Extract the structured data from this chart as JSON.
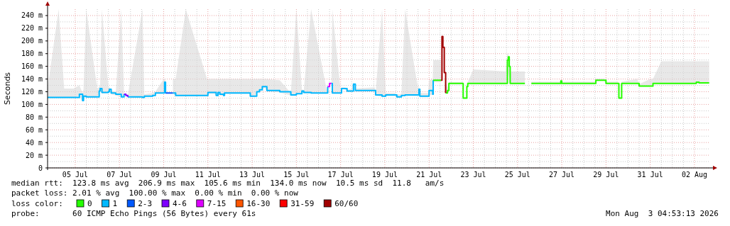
{
  "chart_data": {
    "type": "line",
    "ylabel": "Seconds",
    "xlim": [
      "2026-07-04T06:00",
      "2026-08-03T05:00"
    ],
    "ylim": [
      0,
      250
    ],
    "yticks": [
      {
        "value": 0,
        "label": "0"
      },
      {
        "value": 20,
        "label": "20 m"
      },
      {
        "value": 40,
        "label": "40 m"
      },
      {
        "value": 60,
        "label": "60 m"
      },
      {
        "value": 80,
        "label": "80 m"
      },
      {
        "value": 100,
        "label": "100 m"
      },
      {
        "value": 120,
        "label": "120 m"
      },
      {
        "value": 140,
        "label": "140 m"
      },
      {
        "value": 160,
        "label": "160 m"
      },
      {
        "value": 180,
        "label": "180 m"
      },
      {
        "value": 200,
        "label": "200 m"
      },
      {
        "value": 220,
        "label": "220 m"
      },
      {
        "value": 240,
        "label": "240 m"
      }
    ],
    "xticks": [
      {
        "value": "2026-07-05T12:00",
        "label": "05 Jul"
      },
      {
        "value": "2026-07-07T12:00",
        "label": "07 Jul"
      },
      {
        "value": "2026-07-09T12:00",
        "label": "09 Jul"
      },
      {
        "value": "2026-07-11T12:00",
        "label": "11 Jul"
      },
      {
        "value": "2026-07-13T12:00",
        "label": "13 Jul"
      },
      {
        "value": "2026-07-15T12:00",
        "label": "15 Jul"
      },
      {
        "value": "2026-07-17T12:00",
        "label": "17 Jul"
      },
      {
        "value": "2026-07-19T12:00",
        "label": "19 Jul"
      },
      {
        "value": "2026-07-21T12:00",
        "label": "21 Jul"
      },
      {
        "value": "2026-07-23T12:00",
        "label": "23 Jul"
      },
      {
        "value": "2026-07-25T12:00",
        "label": "25 Jul"
      },
      {
        "value": "2026-07-27T12:00",
        "label": "27 Jul"
      },
      {
        "value": "2026-07-29T12:00",
        "label": "29 Jul"
      },
      {
        "value": "2026-07-31T12:00",
        "label": "31 Jul"
      },
      {
        "value": "2026-08-02T12:00",
        "label": "02 Aug"
      }
    ],
    "grid": true,
    "legend": "bottom",
    "legend_title": "loss color:",
    "line_style": "solid",
    "marker": "none",
    "series": [
      {
        "name": "1",
        "color": "#00b8ff",
        "x": [
          "2026-07-04T06:00",
          "2026-07-04T18:00",
          "2026-07-05T00:00",
          "2026-07-05T10:00",
          "2026-07-05T16:30",
          "2026-07-05T20:00",
          "2026-07-05T21:00",
          "2026-07-06T00:00",
          "2026-07-06T12:00",
          "2026-07-06T14:00",
          "2026-07-06T15:00",
          "2026-07-06T17:00",
          "2026-07-07T00:00",
          "2026-07-07T01:00",
          "2026-07-07T03:00",
          "2026-07-07T08:00",
          "2026-07-07T14:00",
          "2026-07-07T17:00",
          "2026-07-07T19:00",
          "2026-07-07T21:00",
          "2026-07-08T13:00",
          "2026-07-08T15:00",
          "2026-07-09T00:00",
          "2026-07-09T03:00",
          "2026-07-09T12:00",
          "2026-07-09T13:00",
          "2026-07-09T14:00",
          "2026-07-09T18:00",
          "2026-07-09T22:00",
          "2026-07-10T01:00",
          "2026-07-10T12:00",
          "2026-07-11T11:00",
          "2026-07-11T12:00",
          "2026-07-11T19:00",
          "2026-07-11T21:00",
          "2026-07-11T23:00",
          "2026-07-12T01:00",
          "2026-07-12T05:00",
          "2026-07-12T06:00",
          "2026-07-13T09:00",
          "2026-07-13T10:00",
          "2026-07-13T15:00",
          "2026-07-13T17:00",
          "2026-07-13T20:00",
          "2026-07-13T23:00",
          "2026-07-14T02:00",
          "2026-07-14T04:00",
          "2026-07-14T18:00",
          "2026-07-15T06:00",
          "2026-07-15T12:00",
          "2026-07-15T18:00",
          "2026-07-15T20:00",
          "2026-07-16T04:00",
          "2026-07-16T21:00",
          "2026-07-16T22:00",
          "2026-07-17T00:00",
          "2026-07-17T01:00",
          "2026-07-17T02:00",
          "2026-07-17T03:00",
          "2026-07-17T12:00",
          "2026-07-17T13:00",
          "2026-07-17T17:00",
          "2026-07-17T19:00",
          "2026-07-18T00:00",
          "2026-07-18T02:00",
          "2026-07-18T04:00",
          "2026-07-19T01:00",
          "2026-07-19T02:00",
          "2026-07-19T09:00",
          "2026-07-19T13:00",
          "2026-07-19T23:00",
          "2026-07-20T01:00",
          "2026-07-20T05:00",
          "2026-07-20T06:00",
          "2026-07-20T10:00",
          "2026-07-21T00:00",
          "2026-07-21T01:00",
          "2026-07-21T02:00",
          "2026-07-21T11:00",
          "2026-07-21T12:00",
          "2026-07-21T16:00",
          "2026-07-21T16:30"
        ],
        "values": [
          111,
          111,
          111,
          111,
          116,
          106,
          113,
          112,
          112,
          121,
          125,
          119,
          120,
          124,
          118,
          116,
          112,
          116,
          null,
          112,
          111,
          113,
          114,
          118,
          118,
          135,
          118,
          null,
          118,
          114,
          114,
          114,
          119,
          119,
          114,
          119,
          116,
          114,
          118,
          118,
          113,
          113,
          120,
          123,
          128,
          128,
          122,
          120,
          115,
          117,
          121,
          119,
          118,
          118,
          128,
          null,
          null,
          133,
          118,
          118,
          125,
          125,
          121,
          121,
          132,
          122,
          122,
          115,
          113,
          115,
          115,
          112,
          112,
          114,
          115,
          115,
          124,
          113,
          113,
          122,
          116,
          138
        ],
        "lower": [
          110,
          110,
          110,
          110,
          114,
          104,
          111,
          111,
          111,
          119,
          122,
          117,
          118,
          121,
          116,
          114,
          111,
          114,
          null,
          111,
          110,
          112,
          113,
          117,
          117,
          118,
          117,
          null,
          117,
          113,
          113,
          113,
          117,
          117,
          113,
          117,
          114,
          113,
          117,
          117,
          112,
          112,
          118,
          121,
          126,
          126,
          121,
          119,
          114,
          116,
          119,
          118,
          117,
          117,
          126,
          null,
          null,
          130,
          117,
          117,
          124,
          124,
          120,
          120,
          128,
          121,
          121,
          114,
          112,
          114,
          114,
          111,
          111,
          113,
          114,
          114,
          116,
          112,
          112,
          115,
          115,
          135
        ],
        "upper": [
          125,
          250,
          125,
          125,
          130,
          118,
          124,
          250,
          124,
          128,
          130,
          250,
          126,
          128,
          122,
          120,
          250,
          118,
          null,
          114,
          250,
          116,
          118,
          120,
          140,
          140,
          140,
          null,
          140,
          140,
          250,
          140,
          140,
          140,
          140,
          140,
          140,
          140,
          140,
          140,
          140,
          140,
          140,
          140,
          140,
          140,
          140,
          138,
          118,
          250,
          124,
          122,
          250,
          122,
          135,
          null,
          null,
          136,
          250,
          122,
          127,
          127,
          123,
          124,
          135,
          125,
          127,
          118,
          250,
          118,
          118,
          116,
          116,
          118,
          250,
          125,
          130,
          118,
          118,
          138,
          140,
          170
        ]
      },
      {
        "name": "0",
        "color": "#26ff00",
        "x": [
          "2026-07-21T16:30",
          "2026-07-22T01:00",
          "2026-07-22T02:00",
          "2026-07-22T06:00",
          "2026-07-22T08:00",
          "2026-07-22T09:30",
          "2026-07-23T00:30",
          "2026-07-23T01:00",
          "2026-07-23T04:00",
          "2026-07-23T05:00",
          "2026-07-23T06:00",
          "2026-07-23T12:00",
          "2026-07-24T23:00",
          "2026-07-25T01:00",
          "2026-07-25T02:00",
          "2026-07-25T03:00",
          "2026-07-25T04:00",
          "2026-07-25T20:00",
          "2026-07-26T00:00",
          "2026-07-26T03:00",
          "2026-07-27T10:00",
          "2026-07-27T11:00",
          "2026-07-27T12:00",
          "2026-07-29T00:00",
          "2026-07-29T01:00",
          "2026-07-29T10:00",
          "2026-07-29T12:00",
          "2026-07-30T01:00",
          "2026-07-30T02:00",
          "2026-07-30T04:00",
          "2026-07-30T05:00",
          "2026-07-30T22:00",
          "2026-07-31T00:00",
          "2026-07-31T12:00",
          "2026-07-31T15:00",
          "2026-08-01T00:00",
          "2026-08-02T12:00",
          "2026-08-02T14:00",
          "2026-08-02T17:00",
          "2026-08-03T01:00",
          "2026-08-03T04:00"
        ],
        "values": [
          138,
          138,
          null,
          118,
          122,
          133,
          133,
          110,
          110,
          128,
          133,
          133,
          133,
          170,
          175,
          160,
          133,
          133,
          null,
          133,
          133,
          137,
          133,
          133,
          138,
          138,
          133,
          133,
          110,
          110,
          133,
          133,
          129,
          129,
          133,
          133,
          133,
          135,
          134,
          134,
          134
        ],
        "lower": [
          135,
          135,
          null,
          116,
          120,
          132,
          132,
          109,
          109,
          127,
          132,
          132,
          132,
          133,
          150,
          140,
          132,
          132,
          null,
          132,
          132,
          134,
          132,
          132,
          137,
          137,
          132,
          132,
          109,
          109,
          132,
          132,
          128,
          128,
          132,
          132,
          132,
          133,
          133,
          133,
          133
        ],
        "upper": [
          170,
          170,
          null,
          135,
          126,
          135,
          135,
          112,
          112,
          130,
          135,
          155,
          152,
          180,
          180,
          170,
          152,
          152,
          null,
          136,
          136,
          140,
          136,
          136,
          141,
          141,
          136,
          136,
          112,
          112,
          136,
          140,
          132,
          140,
          140,
          168,
          168,
          168,
          168,
          168,
          168
        ]
      },
      {
        "name": "2-3",
        "color": "#0059ff",
        "x": [
          "2026-07-09T14:00",
          "2026-07-09T18:00",
          "2026-07-09T22:00"
        ],
        "values": [
          118,
          118,
          118
        ]
      },
      {
        "name": "4-6",
        "color": "#7e00ff",
        "x": [
          "2026-07-07T17:00",
          "2026-07-07T19:00",
          "2026-07-07T21:00"
        ],
        "values": [
          116,
          114,
          112
        ]
      },
      {
        "name": "7-15",
        "color": "#dd00ff",
        "x": [
          "2026-07-16T22:00",
          "2026-07-17T00:00",
          "2026-07-17T02:00"
        ],
        "values": [
          128,
          133,
          133
        ]
      },
      {
        "name": "16-30",
        "color": "#ff5500"
      },
      {
        "name": "31-59",
        "color": "#ff0000"
      },
      {
        "name": "60/60",
        "color": "#a10000",
        "x": [
          "2026-07-22T01:00",
          "2026-07-22T02:00",
          "2026-07-22T03:00",
          "2026-07-22T04:30",
          "2026-07-22T06:00"
        ],
        "values": [
          138,
          207,
          190,
          150,
          118
        ]
      }
    ],
    "annotations": [
      "median rtt:  123.8 ms avg  206.9 ms max  105.6 ms min  134.0 ms now  10.5 ms sd  11.8   am/s",
      "packet loss: 2.01 % avg  100.00 % max  0.00 % min  0.00 % now",
      "probe:       60 ICMP Echo Pings (56 Bytes) every 61s",
      "Mon Aug  3 04:53:13 2026"
    ]
  }
}
